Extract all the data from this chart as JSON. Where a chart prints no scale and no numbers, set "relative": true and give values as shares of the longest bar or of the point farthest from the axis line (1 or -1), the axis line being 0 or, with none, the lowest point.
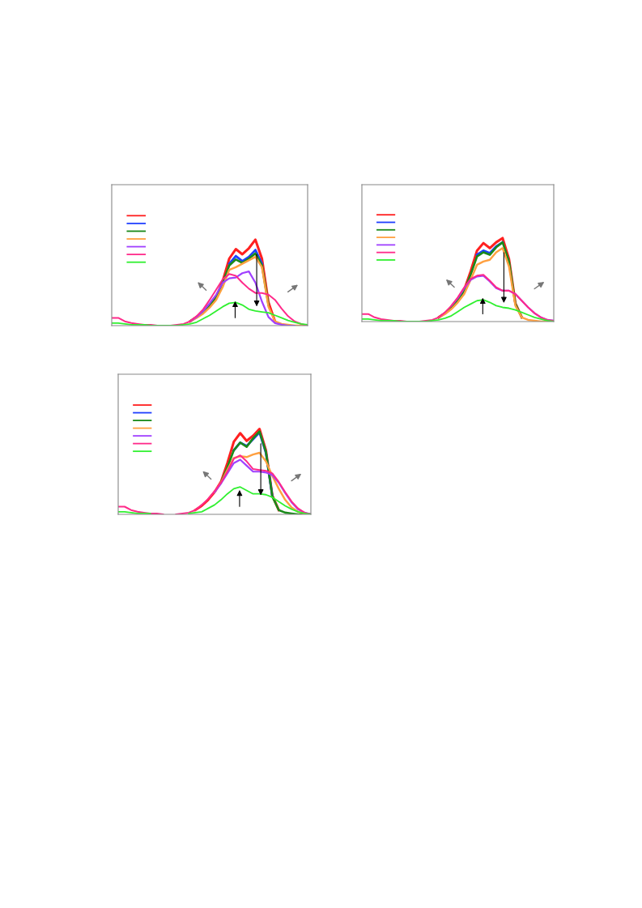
{
  "chart_data": [
    {
      "type": "line",
      "relative": true,
      "marker": "none",
      "line_style": "solid",
      "categories": [
        null,
        null,
        null,
        null,
        null,
        null,
        null,
        null,
        null,
        null,
        null,
        null,
        null,
        null,
        null,
        null,
        null,
        null,
        null,
        null,
        null,
        null,
        null,
        null,
        null,
        null,
        null,
        null,
        null,
        null,
        null
      ],
      "series": [
        {
          "color": "#ff2020",
          "values": [
            null,
            null,
            null,
            null,
            null,
            null,
            null,
            null,
            null,
            null,
            null,
            null,
            0.05,
            0.1,
            0.16,
            0.24,
            0.33,
            0.52,
            0.78,
            0.89,
            0.83,
            0.9,
            1.0,
            0.78,
            0.27,
            0.05,
            null,
            null,
            null,
            null,
            null
          ]
        },
        {
          "color": "#1f3fff",
          "values": [
            null,
            null,
            null,
            null,
            null,
            null,
            null,
            null,
            null,
            null,
            null,
            null,
            null,
            null,
            null,
            null,
            null,
            null,
            0.72,
            0.81,
            0.75,
            0.8,
            0.88,
            0.72,
            null,
            null,
            null,
            null,
            null,
            null,
            null
          ]
        },
        {
          "color": "#1a8a1a",
          "values": [
            null,
            null,
            null,
            null,
            null,
            null,
            null,
            null,
            null,
            null,
            null,
            null,
            0.05,
            0.1,
            0.16,
            0.24,
            0.33,
            0.5,
            0.7,
            0.77,
            0.73,
            0.78,
            0.84,
            0.7,
            0.24,
            null,
            null,
            null,
            null,
            null,
            null
          ]
        },
        {
          "color": "#ffa040",
          "values": [
            null,
            null,
            null,
            null,
            null,
            null,
            null,
            null,
            null,
            null,
            null,
            null,
            0.05,
            0.09,
            0.14,
            0.21,
            0.3,
            0.45,
            0.65,
            0.68,
            0.72,
            0.76,
            0.8,
            0.68,
            0.22,
            0.05,
            0.02,
            0.01,
            0,
            0,
            0
          ]
        },
        {
          "color": "#a040ff",
          "values": [
            null,
            null,
            null,
            null,
            null,
            null,
            null,
            null,
            null,
            null,
            null,
            null,
            0.05,
            0.1,
            0.17,
            0.26,
            0.36,
            0.5,
            0.55,
            0.56,
            0.61,
            0.63,
            0.5,
            0.28,
            0.1,
            0.03,
            0.01,
            0,
            0,
            null,
            null
          ]
        },
        {
          "color": "#ff2a8a",
          "values": [
            0.09,
            0.09,
            0.05,
            0.03,
            0.02,
            0.01,
            0.01,
            0,
            0,
            0,
            0.01,
            0.02,
            0.05,
            0.11,
            0.19,
            0.3,
            0.42,
            0.54,
            0.6,
            0.58,
            0.5,
            0.43,
            0.38,
            0.38,
            0.36,
            0.3,
            0.2,
            0.11,
            0.05,
            0.02,
            0
          ]
        },
        {
          "color": "#30f030",
          "values": [
            0.03,
            0.03,
            0.02,
            0.01,
            0.01,
            0.01,
            0,
            0,
            0,
            0,
            0,
            0.01,
            0.02,
            0.04,
            0.08,
            0.12,
            0.17,
            0.22,
            0.26,
            0.27,
            0.24,
            0.19,
            0.17,
            0.16,
            0.15,
            0.12,
            0.09,
            0.06,
            0.04,
            0.02,
            0.01
          ]
        }
      ]
    },
    {
      "type": "line",
      "relative": true,
      "marker": "none",
      "line_style": "solid",
      "categories": [
        null,
        null,
        null,
        null,
        null,
        null,
        null,
        null,
        null,
        null,
        null,
        null,
        null,
        null,
        null,
        null,
        null,
        null,
        null,
        null,
        null,
        null,
        null,
        null,
        null,
        null,
        null,
        null,
        null,
        null,
        null
      ],
      "series": [
        {
          "color": "#ff2020",
          "values": [
            null,
            null,
            null,
            null,
            null,
            null,
            null,
            null,
            null,
            null,
            null,
            null,
            0.05,
            0.1,
            0.17,
            0.26,
            0.38,
            0.6,
            0.85,
            0.94,
            0.88,
            0.95,
            1.0,
            0.75,
            0.22,
            0.05,
            null,
            null,
            null,
            null,
            null
          ]
        },
        {
          "color": "#1f3fff",
          "values": [
            null,
            null,
            null,
            null,
            null,
            null,
            null,
            null,
            null,
            null,
            null,
            null,
            null,
            null,
            null,
            null,
            null,
            null,
            0.8,
            0.85,
            0.82,
            0.9,
            0.95,
            null,
            null,
            null,
            null,
            null,
            null,
            null,
            null
          ]
        },
        {
          "color": "#1a8a1a",
          "values": [
            null,
            null,
            null,
            null,
            null,
            null,
            null,
            null,
            null,
            null,
            null,
            null,
            0.05,
            0.1,
            0.17,
            0.26,
            0.37,
            0.56,
            0.78,
            0.83,
            0.8,
            0.89,
            0.95,
            0.72,
            0.21,
            0.05,
            null,
            null,
            null,
            null,
            null
          ]
        },
        {
          "color": "#ffa040",
          "values": [
            null,
            null,
            null,
            null,
            null,
            null,
            null,
            null,
            null,
            null,
            null,
            null,
            0.05,
            0.09,
            0.15,
            0.23,
            0.33,
            0.5,
            0.68,
            0.72,
            0.74,
            0.83,
            0.88,
            0.66,
            0.19,
            0.05,
            0.02,
            0.01,
            0,
            0,
            0
          ]
        },
        {
          "color": "#a040ff",
          "values": [
            null,
            null,
            null,
            null,
            null,
            null,
            null,
            null,
            null,
            null,
            null,
            null,
            null,
            null,
            0.19,
            0.28,
            0.4,
            0.5,
            0.54,
            0.55,
            0.48,
            0.4,
            0.37,
            0.37,
            0.33,
            0.25,
            0.17,
            0.1,
            0.05,
            0.02,
            0.01
          ]
        },
        {
          "color": "#ff2a8a",
          "values": [
            0.09,
            0.09,
            0.05,
            0.03,
            0.02,
            0.01,
            0.01,
            0,
            0,
            0,
            0.01,
            0.02,
            0.05,
            0.11,
            0.19,
            0.29,
            0.41,
            0.51,
            0.55,
            0.56,
            0.49,
            0.41,
            0.37,
            0.37,
            0.33,
            0.25,
            0.17,
            0.1,
            0.05,
            0.02,
            0.01
          ]
        },
        {
          "color": "#30f030",
          "values": [
            0.03,
            0.03,
            0.02,
            0.01,
            0.01,
            0.01,
            0,
            0,
            0,
            0,
            0,
            0.01,
            0.02,
            0.04,
            0.07,
            0.12,
            0.17,
            0.21,
            0.25,
            0.26,
            0.23,
            0.19,
            0.17,
            0.16,
            0.14,
            0.11,
            0.08,
            0.05,
            0.03,
            0.01,
            0
          ]
        }
      ]
    },
    {
      "type": "line",
      "relative": true,
      "marker": "none",
      "line_style": "solid",
      "categories": [
        null,
        null,
        null,
        null,
        null,
        null,
        null,
        null,
        null,
        null,
        null,
        null,
        null,
        null,
        null,
        null,
        null,
        null,
        null,
        null,
        null,
        null,
        null,
        null,
        null,
        null,
        null,
        null,
        null,
        null,
        null
      ],
      "series": [
        {
          "color": "#ff2020",
          "values": [
            null,
            null,
            null,
            null,
            null,
            null,
            null,
            null,
            null,
            null,
            null,
            null,
            0.05,
            0.1,
            0.17,
            0.26,
            0.38,
            0.6,
            0.85,
            0.95,
            0.86,
            0.92,
            1.0,
            0.75,
            0.22,
            0.05,
            null,
            null,
            null,
            null,
            null
          ]
        },
        {
          "color": "#1f3fff",
          "values": [
            null,
            null,
            null,
            null,
            null,
            null,
            null,
            null,
            null,
            null,
            null,
            null,
            null,
            null,
            null,
            null,
            null,
            null,
            0.75,
            0.84,
            0.8,
            0.88,
            0.96,
            0.72,
            0.21,
            null,
            null,
            null,
            null,
            null,
            null
          ]
        },
        {
          "color": "#1a8a1a",
          "values": [
            null,
            null,
            null,
            null,
            null,
            null,
            null,
            null,
            null,
            null,
            null,
            null,
            null,
            null,
            null,
            null,
            0.37,
            0.55,
            0.75,
            0.84,
            0.79,
            0.89,
            0.97,
            0.73,
            0.21,
            0.05,
            0.02,
            0.01,
            0,
            0,
            0
          ]
        },
        {
          "color": "#ffa040",
          "values": [
            null,
            null,
            null,
            null,
            null,
            null,
            null,
            null,
            null,
            null,
            null,
            null,
            null,
            null,
            null,
            0.26,
            0.37,
            0.52,
            0.66,
            0.68,
            0.67,
            0.7,
            0.72,
            0.62,
            0.45,
            0.3,
            0.17,
            0.08,
            0.03,
            0.01,
            0
          ]
        },
        {
          "color": "#a040ff",
          "values": [
            null,
            null,
            null,
            null,
            null,
            null,
            null,
            null,
            null,
            null,
            null,
            null,
            null,
            null,
            null,
            0.26,
            0.36,
            0.48,
            0.6,
            0.64,
            0.57,
            0.5,
            0.5,
            0.49,
            0.46,
            0.37,
            0.25,
            0.14,
            0.06,
            0.02,
            0
          ]
        },
        {
          "color": "#ff2a8a",
          "values": [
            0.09,
            0.09,
            0.05,
            0.03,
            0.02,
            0.01,
            0.01,
            0,
            null,
            0,
            0.01,
            0.02,
            0.05,
            0.11,
            0.18,
            0.27,
            0.37,
            0.5,
            0.65,
            0.69,
            0.62,
            0.53,
            0.52,
            0.51,
            0.48,
            0.38,
            0.26,
            0.15,
            0.07,
            0.02,
            0
          ]
        },
        {
          "color": "#30f030",
          "values": [
            0.03,
            0.03,
            0.02,
            0.01,
            0.01,
            0.01,
            null,
            null,
            null,
            null,
            null,
            0.01,
            0.02,
            0.03,
            0.07,
            0.11,
            0.17,
            0.24,
            0.3,
            0.32,
            0.28,
            0.24,
            0.24,
            0.23,
            0.2,
            0.15,
            0.1,
            0.06,
            0.03,
            0.01,
            0
          ]
        }
      ]
    }
  ]
}
